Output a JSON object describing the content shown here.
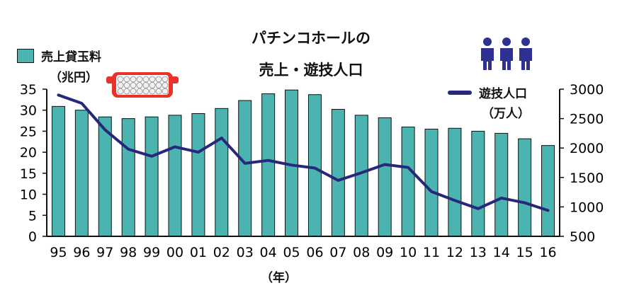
{
  "title_line1": "パチンコホールの",
  "title_line2": "売上・遊技人口",
  "legend": {
    "bar_label": "売上貸玉料",
    "bar_unit": "（兆円）",
    "line_label": "遊技人口",
    "line_unit": "（万人）"
  },
  "x_axis_unit": "（年）",
  "colors": {
    "bar": "#4bb3b0",
    "line": "#27287a",
    "icon": "#2e3192",
    "tray": "#e8322a"
  },
  "icons": [
    "pachinko-tray-icon",
    "people-icon"
  ],
  "chart_data": {
    "type": "bar+line",
    "categories": [
      "95",
      "96",
      "97",
      "98",
      "99",
      "00",
      "01",
      "02",
      "03",
      "04",
      "05",
      "06",
      "07",
      "08",
      "09",
      "10",
      "11",
      "12",
      "13",
      "14",
      "15",
      "16"
    ],
    "series": [
      {
        "name": "売上貸玉料",
        "type": "bar",
        "axis": "left",
        "values": [
          30.9,
          30.0,
          28.4,
          28.0,
          28.4,
          28.8,
          29.2,
          30.4,
          32.3,
          33.9,
          34.8,
          33.7,
          30.2,
          28.8,
          28.2,
          26.0,
          25.5,
          25.7,
          25.0,
          24.5,
          23.2,
          21.6
        ]
      },
      {
        "name": "遊技人口",
        "type": "line",
        "axis": "right",
        "values": [
          2900,
          2760,
          2310,
          1980,
          1860,
          2020,
          1930,
          2170,
          1740,
          1790,
          1710,
          1660,
          1450,
          1580,
          1720,
          1670,
          1260,
          1110,
          970,
          1150,
          1070,
          940
        ]
      }
    ],
    "y_left": {
      "min": 0,
      "max": 35,
      "ticks": [
        0,
        5,
        10,
        15,
        20,
        25,
        30,
        35
      ]
    },
    "y_right": {
      "min": 500,
      "max": 3000,
      "ticks": [
        500,
        1000,
        1500,
        2000,
        2500,
        3000
      ]
    },
    "grid": false
  }
}
